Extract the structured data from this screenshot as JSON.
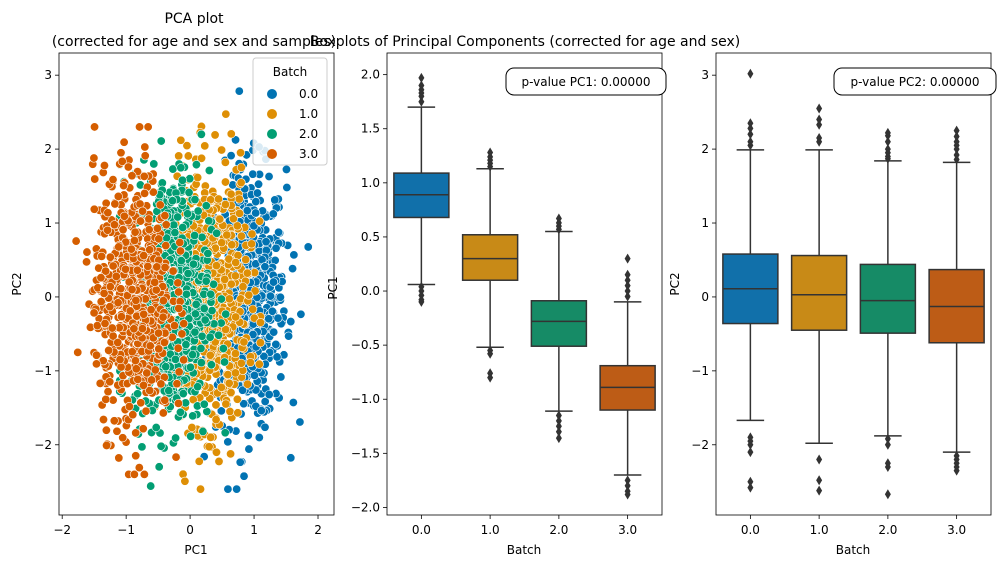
{
  "figure": {
    "title_left_line1": "PCA plot",
    "title_left_line2": "(corrected for age and sex and samples)",
    "title_right": "Boxplots of Principal Components (corrected for age and sex)"
  },
  "colors": {
    "0.0": "#0173b2",
    "1.0": "#de8f05",
    "2.0": "#029e73",
    "3.0": "#d55e00",
    "box_0.0": "#1170aa",
    "box_1.0": "#c88a17",
    "box_2.0": "#168b66",
    "box_3.0": "#bd5c16"
  },
  "chart_data": [
    {
      "type": "scatter",
      "xlabel": "PC1",
      "ylabel": "PC2",
      "xlim": [
        -2.05,
        2.25
      ],
      "ylim": [
        -2.95,
        3.3
      ],
      "xticks": [
        "−2",
        "−1",
        "0",
        "1",
        "2"
      ],
      "xtick_values": [
        -2,
        -1,
        0,
        1,
        2
      ],
      "yticks": [
        "−2",
        "−1",
        "0",
        "1",
        "2",
        "3"
      ],
      "ytick_values": [
        -2,
        -1,
        0,
        1,
        2,
        3
      ],
      "legend": {
        "title": "Batch",
        "placement": "top-right",
        "entries": [
          "0.0",
          "1.0",
          "2.0",
          "3.0"
        ]
      },
      "series": [
        {
          "name": "0.0",
          "center_x": 0.9,
          "spread_x": 0.3,
          "spread_y": 0.85,
          "x_range": [
            0.05,
            2.0
          ],
          "y_range": [
            -2.6,
            3.0
          ]
        },
        {
          "name": "1.0",
          "center_x": 0.3,
          "spread_x": 0.3,
          "spread_y": 0.85,
          "x_range": [
            -0.6,
            1.1
          ],
          "y_range": [
            -2.6,
            2.6
          ]
        },
        {
          "name": "2.0",
          "center_x": -0.3,
          "spread_x": 0.3,
          "spread_y": 0.85,
          "x_range": [
            -1.1,
            0.6
          ],
          "y_range": [
            -2.7,
            2.2
          ]
        },
        {
          "name": "3.0",
          "center_x": -0.9,
          "spread_x": 0.3,
          "spread_y": 0.85,
          "x_range": [
            -1.9,
            -0.1
          ],
          "y_range": [
            -2.4,
            2.3
          ]
        }
      ]
    },
    {
      "type": "box",
      "xlabel": "Batch",
      "ylabel": "PC1",
      "categories": [
        "0.0",
        "1.0",
        "2.0",
        "3.0"
      ],
      "ylim": [
        -2.07,
        2.2
      ],
      "yticks": [
        "−2.0",
        "−1.5",
        "−1.0",
        "−0.5",
        "0.0",
        "0.5",
        "1.0",
        "1.5",
        "2.0"
      ],
      "ytick_values": [
        -2.0,
        -1.5,
        -1.0,
        -0.5,
        0.0,
        0.5,
        1.0,
        1.5,
        2.0
      ],
      "annotation": "p-value PC1: 0.00000",
      "boxes": [
        {
          "name": "0.0",
          "q1": 0.68,
          "median": 0.89,
          "q3": 1.09,
          "whisker_low": 0.06,
          "whisker_high": 1.7,
          "outliers": [
            1.75,
            1.8,
            1.83,
            1.86,
            1.9,
            1.97,
            0.04,
            0.0,
            -0.04,
            -0.08,
            -0.1
          ]
        },
        {
          "name": "1.0",
          "q1": 0.1,
          "median": 0.3,
          "q3": 0.52,
          "whisker_low": -0.52,
          "whisker_high": 1.13,
          "outliers": [
            1.15,
            1.18,
            1.21,
            1.24,
            1.28,
            -0.55,
            -0.58,
            -0.76,
            -0.8
          ]
        },
        {
          "name": "2.0",
          "q1": -0.51,
          "median": -0.28,
          "q3": -0.09,
          "whisker_low": -1.11,
          "whisker_high": 0.55,
          "outliers": [
            0.57,
            0.6,
            0.63,
            0.67,
            -1.15,
            -1.2,
            -1.25,
            -1.3,
            -1.36
          ]
        },
        {
          "name": "3.0",
          "q1": -1.1,
          "median": -0.89,
          "q3": -0.69,
          "whisker_low": -1.7,
          "whisker_high": -0.1,
          "outliers": [
            -0.05,
            0.0,
            0.05,
            0.1,
            0.15,
            0.3,
            -1.75,
            -1.8,
            -1.85,
            -1.88
          ]
        }
      ]
    },
    {
      "type": "box",
      "xlabel": "Batch",
      "ylabel": "PC2",
      "categories": [
        "0.0",
        "1.0",
        "2.0",
        "3.0"
      ],
      "ylim": [
        -2.95,
        3.3
      ],
      "yticks": [
        "−2",
        "−1",
        "0",
        "1",
        "2",
        "3"
      ],
      "ytick_values": [
        -2,
        -1,
        0,
        1,
        2,
        3
      ],
      "annotation": "p-value PC2: 0.00000",
      "boxes": [
        {
          "name": "0.0",
          "q1": -0.36,
          "median": 0.11,
          "q3": 0.58,
          "whisker_low": -1.67,
          "whisker_high": 1.99,
          "outliers": [
            2.05,
            2.1,
            2.2,
            2.28,
            2.35,
            3.02,
            -1.9,
            -1.95,
            -2.0,
            -2.1,
            -2.5,
            -2.58
          ]
        },
        {
          "name": "1.0",
          "q1": -0.45,
          "median": 0.03,
          "q3": 0.56,
          "whisker_low": -1.98,
          "whisker_high": 1.99,
          "outliers": [
            2.1,
            2.15,
            2.33,
            2.4,
            2.55,
            -2.2,
            -2.48,
            -2.62
          ]
        },
        {
          "name": "2.0",
          "q1": -0.49,
          "median": -0.05,
          "q3": 0.44,
          "whisker_low": -1.88,
          "whisker_high": 1.84,
          "outliers": [
            1.87,
            1.9,
            1.95,
            2.0,
            2.1,
            2.18,
            2.22,
            -1.92,
            -2.0,
            -2.25,
            -2.3,
            -2.67
          ]
        },
        {
          "name": "3.0",
          "q1": -0.62,
          "median": -0.13,
          "q3": 0.37,
          "whisker_low": -2.1,
          "whisker_high": 1.82,
          "outliers": [
            1.86,
            1.92,
            2.0,
            2.05,
            2.1,
            2.17,
            2.25,
            -2.15,
            -2.2,
            -2.25,
            -2.3,
            -2.35
          ]
        }
      ]
    }
  ]
}
